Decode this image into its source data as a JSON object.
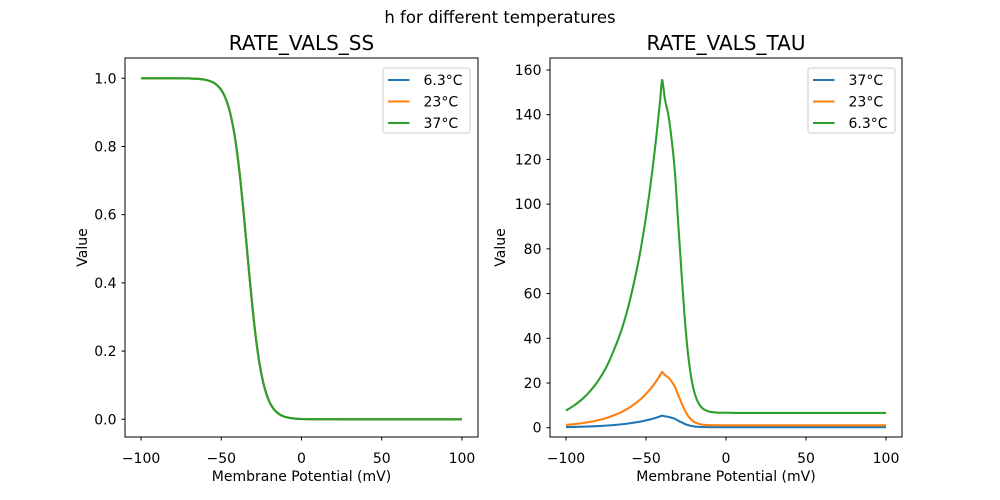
{
  "suptitle": "h for different temperatures",
  "colors": {
    "blue": "#1f77b4",
    "orange": "#ff7f0e",
    "green": "#2ca02c"
  },
  "chart_data": [
    {
      "type": "line",
      "title": "RATE_VALS_SS",
      "xlabel": "Membrane Potential (mV)",
      "ylabel": "Value",
      "xlim": [
        -110,
        110
      ],
      "ylim": [
        -0.052,
        1.0594
      ],
      "grid": false,
      "legend_position": "upper right",
      "xticks": {
        "values": [
          -100,
          -50,
          0,
          50,
          100
        ],
        "labels": [
          "−100",
          "−50",
          "0",
          "50",
          "100"
        ]
      },
      "yticks": {
        "values": [
          0,
          0.2,
          0.4,
          0.6,
          0.8,
          1.0
        ],
        "labels": [
          "0.0",
          "0.2",
          "0.4",
          "0.6",
          "0.8",
          "1.0"
        ]
      },
      "x": [
        -100,
        -80,
        -70,
        -65,
        -60,
        -55,
        -52,
        -50,
        -48,
        -46,
        -44,
        -42,
        -40,
        -38,
        -36,
        -34,
        -32,
        -30,
        -28,
        -26,
        -24,
        -22,
        -20,
        -18,
        -16,
        -14,
        -12,
        -10,
        -5,
        0,
        10,
        30,
        60,
        100
      ],
      "series": [
        {
          "name": "6.3°C",
          "color": "#1f77b4",
          "values": [
            1.0,
            0.9999,
            0.9994,
            0.9984,
            0.9956,
            0.9876,
            0.9766,
            0.9655,
            0.9487,
            0.9241,
            0.8893,
            0.8411,
            0.7773,
            0.6971,
            0.6027,
            0.5,
            0.3973,
            0.3029,
            0.2227,
            0.1589,
            0.1107,
            0.0759,
            0.0513,
            0.0345,
            0.023,
            0.0153,
            0.0101,
            0.0067,
            0.0024,
            0.0008,
            0.0001,
            0.0,
            0.0,
            0.0
          ]
        },
        {
          "name": "23°C",
          "color": "#ff7f0e",
          "values": [
            1.0,
            0.9999,
            0.9994,
            0.9984,
            0.9956,
            0.9876,
            0.9766,
            0.9655,
            0.9487,
            0.9241,
            0.8893,
            0.8411,
            0.7773,
            0.6971,
            0.6027,
            0.5,
            0.3973,
            0.3029,
            0.2227,
            0.1589,
            0.1107,
            0.0759,
            0.0513,
            0.0345,
            0.023,
            0.0153,
            0.0101,
            0.0067,
            0.0024,
            0.0008,
            0.0001,
            0.0,
            0.0,
            0.0
          ]
        },
        {
          "name": "37°C",
          "color": "#2ca02c",
          "values": [
            1.0,
            0.9999,
            0.9994,
            0.9984,
            0.9956,
            0.9876,
            0.9766,
            0.9655,
            0.9487,
            0.9241,
            0.8893,
            0.8411,
            0.7773,
            0.6971,
            0.6027,
            0.5,
            0.3973,
            0.3029,
            0.2227,
            0.1589,
            0.1107,
            0.0759,
            0.0513,
            0.0345,
            0.023,
            0.0153,
            0.0101,
            0.0067,
            0.0024,
            0.0008,
            0.0001,
            0.0,
            0.0,
            0.0
          ]
        }
      ]
    },
    {
      "type": "line",
      "title": "RATE_VALS_TAU",
      "xlabel": "Membrane Potential (mV)",
      "ylabel": "Value",
      "xlim": [
        -110,
        110
      ],
      "ylim": [
        -4.16,
        165.37
      ],
      "grid": false,
      "legend_position": "upper right",
      "xticks": {
        "values": [
          -100,
          -50,
          0,
          50,
          100
        ],
        "labels": [
          "−100",
          "−50",
          "0",
          "50",
          "100"
        ]
      },
      "yticks": {
        "values": [
          0,
          20,
          40,
          60,
          80,
          100,
          120,
          140,
          160
        ],
        "labels": [
          "0",
          "20",
          "40",
          "60",
          "80",
          "100",
          "120",
          "140",
          "160"
        ]
      },
      "x": [
        -100,
        -95,
        -90,
        -85,
        -80,
        -75,
        -70,
        -65,
        -60,
        -55,
        -52,
        -50,
        -48,
        -46,
        -44,
        -42,
        -41,
        -40,
        -39,
        -38,
        -36,
        -34,
        -32,
        -30,
        -28,
        -26,
        -24,
        -22,
        -20,
        -18,
        -16,
        -14,
        -12,
        -10,
        -5,
        0,
        10,
        30,
        60,
        100
      ],
      "series": [
        {
          "name": "37°C",
          "color": "#1f77b4",
          "values": [
            0.27,
            0.34,
            0.44,
            0.56,
            0.72,
            0.93,
            1.2,
            1.54,
            1.98,
            2.54,
            2.95,
            3.26,
            3.61,
            3.99,
            4.4,
            4.87,
            5.12,
            5.38,
            5.24,
            5.06,
            4.83,
            4.46,
            3.98,
            3.21,
            2.47,
            1.76,
            1.2,
            0.82,
            0.57,
            0.42,
            0.34,
            0.29,
            0.26,
            0.25,
            0.23,
            0.23,
            0.23,
            0.23,
            0.23,
            0.23
          ]
        },
        {
          "name": "23°C",
          "color": "#ff7f0e",
          "values": [
            1.23,
            1.59,
            2.04,
            2.61,
            3.35,
            4.29,
            5.58,
            7.12,
            9.17,
            11.76,
            13.67,
            15.11,
            16.7,
            18.46,
            20.4,
            22.55,
            23.7,
            24.92,
            24.28,
            23.45,
            22.39,
            20.67,
            18.43,
            14.87,
            11.44,
            8.17,
            5.58,
            3.78,
            2.63,
            1.96,
            1.55,
            1.33,
            1.22,
            1.14,
            1.07,
            1.07,
            1.06,
            1.06,
            1.06,
            1.06
          ]
        },
        {
          "name": "6.3°C",
          "color": "#2ca02c",
          "values": [
            7.7,
            9.9,
            12.7,
            16.3,
            20.9,
            26.8,
            34.8,
            44.4,
            57.2,
            73.4,
            85.3,
            94.3,
            104.2,
            115.2,
            127.3,
            140.7,
            147.9,
            155.5,
            151.5,
            146.3,
            139.7,
            129.0,
            115.0,
            92.8,
            71.4,
            51.0,
            34.8,
            23.6,
            16.4,
            12.2,
            9.7,
            8.3,
            7.6,
            7.1,
            6.7,
            6.7,
            6.6,
            6.6,
            6.6,
            6.6
          ]
        }
      ]
    }
  ]
}
